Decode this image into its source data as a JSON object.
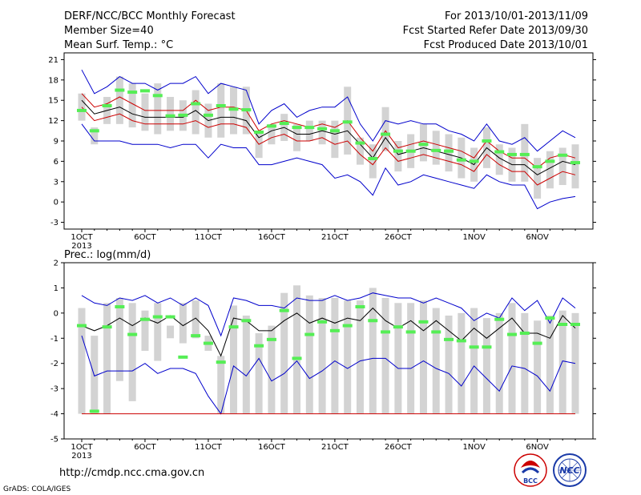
{
  "header": {
    "title": "DERF/NCC/BCC Monthly Forecast",
    "member_size": "Member Size=40",
    "variable": "Mean Surf. Temp.: °C",
    "period": "For 2013/10/01-2013/11/09",
    "fcst_started": "Fcst Started Refer Date 2013/09/30",
    "fcst_produced": "Fcst Produced Date 2013/10/01"
  },
  "footer": {
    "url": "http://cmdp.ncc.cma.gov.cn",
    "credit": "GrADS: COLA/IGES",
    "logo_bcc": "BCC",
    "logo_ncc": "NCC"
  },
  "colors": {
    "max_min": "#0000cc",
    "spread": "#cc0000",
    "mean": "#000000",
    "bar": "#d3d3d3",
    "marker": "#55ee55"
  },
  "chart_data": [
    {
      "type": "line",
      "subtitle": "",
      "x_ticks": [
        "1OCT",
        "6OCT",
        "11OCT",
        "16OCT",
        "21OCT",
        "26OCT",
        "1NOV",
        "6NOV"
      ],
      "x_tick_days": [
        1,
        6,
        11,
        16,
        21,
        26,
        32,
        37
      ],
      "x_year_label": "2013",
      "ylim": [
        -4,
        22
      ],
      "y_ticks": [
        -3,
        0,
        3,
        6,
        9,
        12,
        15,
        18,
        21
      ],
      "days": [
        1,
        2,
        3,
        4,
        5,
        6,
        7,
        8,
        9,
        10,
        11,
        12,
        13,
        14,
        15,
        16,
        17,
        18,
        19,
        20,
        21,
        22,
        23,
        24,
        25,
        26,
        27,
        28,
        29,
        30,
        31,
        32,
        33,
        34,
        35,
        36,
        37,
        38,
        39,
        40
      ],
      "series": [
        {
          "name": "max",
          "values": [
            19.5,
            16.0,
            17.0,
            18.5,
            17.5,
            17.5,
            16.5,
            17.5,
            17.5,
            18.5,
            16.0,
            17.5,
            17.0,
            16.5,
            11.5,
            13.5,
            14.5,
            12.5,
            13.5,
            14.0,
            14.0,
            15.5,
            11.5,
            9.0,
            12.0,
            11.5,
            12.0,
            11.5,
            11.5,
            10.5,
            10.0,
            9.0,
            11.5,
            9.0,
            8.5,
            9.5,
            7.5,
            9.0,
            10.5,
            9.5
          ]
        },
        {
          "name": "upper",
          "values": [
            16.0,
            14.0,
            14.5,
            15.5,
            14.5,
            13.5,
            13.5,
            13.5,
            13.5,
            15.0,
            13.5,
            14.0,
            14.0,
            13.5,
            10.5,
            11.5,
            12.0,
            11.5,
            11.0,
            11.5,
            11.0,
            12.0,
            9.5,
            7.5,
            10.5,
            8.0,
            8.5,
            9.0,
            8.5,
            8.0,
            7.5,
            6.5,
            9.0,
            7.5,
            6.5,
            6.5,
            5.0,
            6.5,
            7.0,
            6.5
          ]
        },
        {
          "name": "mean",
          "values": [
            15.0,
            13.0,
            13.5,
            14.0,
            13.0,
            12.5,
            12.5,
            12.5,
            12.5,
            13.5,
            12.0,
            12.5,
            12.5,
            12.0,
            9.5,
            10.5,
            11.0,
            10.0,
            10.0,
            10.5,
            10.0,
            10.5,
            8.5,
            6.5,
            9.5,
            7.0,
            7.5,
            8.0,
            7.5,
            7.0,
            6.5,
            5.5,
            8.0,
            6.5,
            5.5,
            5.5,
            4.0,
            5.0,
            6.0,
            5.5
          ]
        },
        {
          "name": "lower",
          "values": [
            14.0,
            12.0,
            12.5,
            13.0,
            12.0,
            11.5,
            11.5,
            11.5,
            11.5,
            12.0,
            11.0,
            11.5,
            11.5,
            11.0,
            8.5,
            9.5,
            10.0,
            9.0,
            9.0,
            9.5,
            8.5,
            9.0,
            7.0,
            5.5,
            8.0,
            6.0,
            6.5,
            7.0,
            6.5,
            6.0,
            5.5,
            4.5,
            7.0,
            5.5,
            4.5,
            4.5,
            2.5,
            3.5,
            4.5,
            4.0
          ]
        },
        {
          "name": "min",
          "values": [
            11.5,
            9.0,
            9.0,
            9.0,
            8.5,
            8.5,
            8.5,
            8.0,
            8.5,
            8.5,
            6.5,
            8.5,
            8.0,
            8.0,
            5.5,
            5.5,
            6.0,
            6.5,
            6.0,
            5.5,
            3.5,
            4.0,
            3.0,
            1.0,
            5.0,
            2.5,
            3.0,
            4.0,
            3.5,
            3.0,
            2.5,
            2.0,
            4.0,
            3.0,
            2.5,
            2.5,
            -1.0,
            0.0,
            0.5,
            0.8
          ]
        }
      ],
      "bars_low": [
        12.0,
        8.5,
        11.5,
        11.5,
        11.0,
        10.5,
        10.0,
        10.5,
        10.5,
        10.0,
        9.5,
        9.5,
        10.0,
        10.0,
        6.5,
        8.5,
        9.0,
        7.5,
        9.0,
        8.5,
        6.5,
        7.0,
        5.5,
        3.5,
        7.5,
        4.5,
        5.0,
        6.0,
        5.5,
        4.5,
        3.5,
        3.0,
        5.0,
        4.0,
        3.0,
        3.0,
        0.5,
        2.0,
        2.5,
        2.0
      ],
      "bars_high": [
        16.0,
        11.0,
        15.5,
        18.5,
        17.5,
        16.0,
        17.5,
        15.5,
        15.0,
        16.5,
        14.5,
        17.5,
        17.0,
        17.0,
        10.5,
        11.5,
        13.0,
        11.5,
        12.0,
        12.0,
        12.0,
        17.0,
        9.5,
        8.5,
        14.0,
        9.0,
        10.0,
        11.5,
        10.5,
        10.0,
        9.5,
        8.0,
        11.0,
        8.5,
        8.0,
        11.5,
        6.5,
        7.5,
        8.0,
        8.5
      ],
      "markers": [
        13.5,
        10.5,
        14.2,
        16.5,
        16.2,
        16.4,
        15.7,
        12.7,
        12.8,
        14.5,
        12.8,
        14.2,
        13.7,
        13.6,
        10.3,
        11.2,
        11.6,
        11.0,
        11.0,
        10.8,
        10.5,
        11.8,
        8.7,
        6.4,
        10.0,
        7.5,
        7.5,
        8.5,
        7.6,
        7.5,
        6.2,
        6.0,
        9.0,
        7.4,
        7.0,
        7.0,
        5.2,
        6.0,
        6.9,
        5.8
      ]
    },
    {
      "type": "line",
      "subtitle": "Prec.: log(mm/d)",
      "x_ticks": [
        "1OCT",
        "6OCT",
        "11OCT",
        "16OCT",
        "21OCT",
        "26OCT",
        "1NOV",
        "6NOV"
      ],
      "x_tick_days": [
        1,
        6,
        11,
        16,
        21,
        26,
        32,
        37
      ],
      "x_year_label": "2013",
      "ylim": [
        -5,
        2
      ],
      "y_ticks": [
        -5,
        -4,
        -3,
        -2,
        -1,
        0,
        1,
        2
      ],
      "days": [
        1,
        2,
        3,
        4,
        5,
        6,
        7,
        8,
        9,
        10,
        11,
        12,
        13,
        14,
        15,
        16,
        17,
        18,
        19,
        20,
        21,
        22,
        23,
        24,
        25,
        26,
        27,
        28,
        29,
        30,
        31,
        32,
        33,
        34,
        35,
        36,
        37,
        38,
        39,
        40
      ],
      "series": [
        {
          "name": "max",
          "values": [
            0.7,
            0.4,
            0.3,
            0.6,
            0.5,
            0.7,
            0.4,
            0.6,
            0.3,
            0.6,
            0.3,
            -0.9,
            0.6,
            0.5,
            0.3,
            0.3,
            0.2,
            0.6,
            0.5,
            0.5,
            0.7,
            0.5,
            0.6,
            0.8,
            0.7,
            0.6,
            0.6,
            0.4,
            0.6,
            0.4,
            0.2,
            -0.3,
            0.0,
            -0.2,
            0.6,
            0.1,
            0.5,
            -0.4,
            0.6,
            0.2
          ]
        },
        {
          "name": "mean",
          "values": [
            -0.5,
            -0.7,
            -0.5,
            -0.2,
            -0.5,
            -0.2,
            -0.4,
            -0.1,
            -0.5,
            -0.2,
            -0.7,
            -1.7,
            -0.2,
            -0.3,
            -0.7,
            -0.7,
            -0.3,
            0.0,
            -0.4,
            -0.2,
            -0.4,
            -0.2,
            -0.3,
            0.2,
            -0.3,
            -0.6,
            -0.3,
            -0.7,
            -0.3,
            -0.7,
            -1.1,
            -0.6,
            -1.0,
            -0.6,
            -0.2,
            -0.8,
            -0.8,
            -1.0,
            -0.1,
            -0.6
          ]
        },
        {
          "name": "min",
          "values": [
            -0.9,
            -2.5,
            -2.3,
            -2.3,
            -2.3,
            -2.0,
            -2.4,
            -2.2,
            -2.2,
            -2.4,
            -3.3,
            -4.0,
            -2.1,
            -2.5,
            -1.8,
            -2.7,
            -2.4,
            -1.9,
            -2.6,
            -2.3,
            -1.9,
            -2.2,
            -1.9,
            -1.8,
            -1.8,
            -2.2,
            -2.2,
            -1.9,
            -2.2,
            -2.4,
            -2.9,
            -2.1,
            -2.6,
            -3.1,
            -2.1,
            -2.2,
            -2.5,
            -3.1,
            -1.9,
            -2.0
          ]
        },
        {
          "name": "floor",
          "values": [
            -4,
            -4,
            -4,
            -4,
            -4,
            -4,
            -4,
            -4,
            -4,
            -4,
            -4,
            -4,
            -4,
            -4,
            -4,
            -4,
            -4,
            -4,
            -4,
            -4,
            -4,
            -4,
            -4,
            -4,
            -4,
            -4,
            -4,
            -4,
            -4,
            -4,
            -4,
            -4,
            -4,
            -4,
            -4,
            -4,
            -4,
            -4,
            -4,
            -4
          ]
        }
      ],
      "bars_low": [
        -4,
        -4,
        -4,
        -2.7,
        -3.5,
        -1.5,
        -1.9,
        -1.0,
        -1.2,
        -1.0,
        -1.5,
        -4.0,
        -4,
        -4,
        -4,
        -4,
        -4,
        -4,
        -4,
        -4,
        -4,
        -4,
        -4,
        -4,
        -4,
        -4,
        -4,
        -4,
        -4,
        -4,
        -4,
        -4,
        -4,
        -4,
        -4,
        -4,
        -4,
        -4,
        -4,
        -4
      ],
      "bars_high": [
        0.2,
        -0.9,
        0.4,
        0.6,
        0.4,
        0.1,
        0.4,
        -0.5,
        0.4,
        0.5,
        -0.9,
        -1.7,
        0.3,
        -0.1,
        -0.8,
        -0.5,
        0.8,
        1.1,
        0.7,
        0.6,
        0.6,
        0.5,
        0.5,
        1.0,
        0.6,
        0.4,
        0.4,
        0.5,
        0.2,
        -0.1,
        0.0,
        0.2,
        -0.2,
        0.0,
        0.4,
        0.0,
        -0.3,
        -0.1,
        0.1,
        0.0
      ],
      "markers": [
        -0.5,
        -3.9,
        -0.55,
        0.25,
        -0.85,
        -0.25,
        -0.15,
        -0.15,
        -1.75,
        -0.9,
        -1.2,
        -1.95,
        -0.55,
        -0.3,
        -1.3,
        -1.05,
        0.1,
        -1.8,
        -0.85,
        -0.35,
        -0.7,
        -0.5,
        0.25,
        -0.3,
        -0.75,
        -0.55,
        -0.75,
        -0.35,
        -0.75,
        -1.05,
        -1.1,
        -1.35,
        -1.35,
        -0.25,
        -0.85,
        -0.8,
        -1.2,
        -0.2,
        -0.45,
        -0.45
      ]
    }
  ]
}
